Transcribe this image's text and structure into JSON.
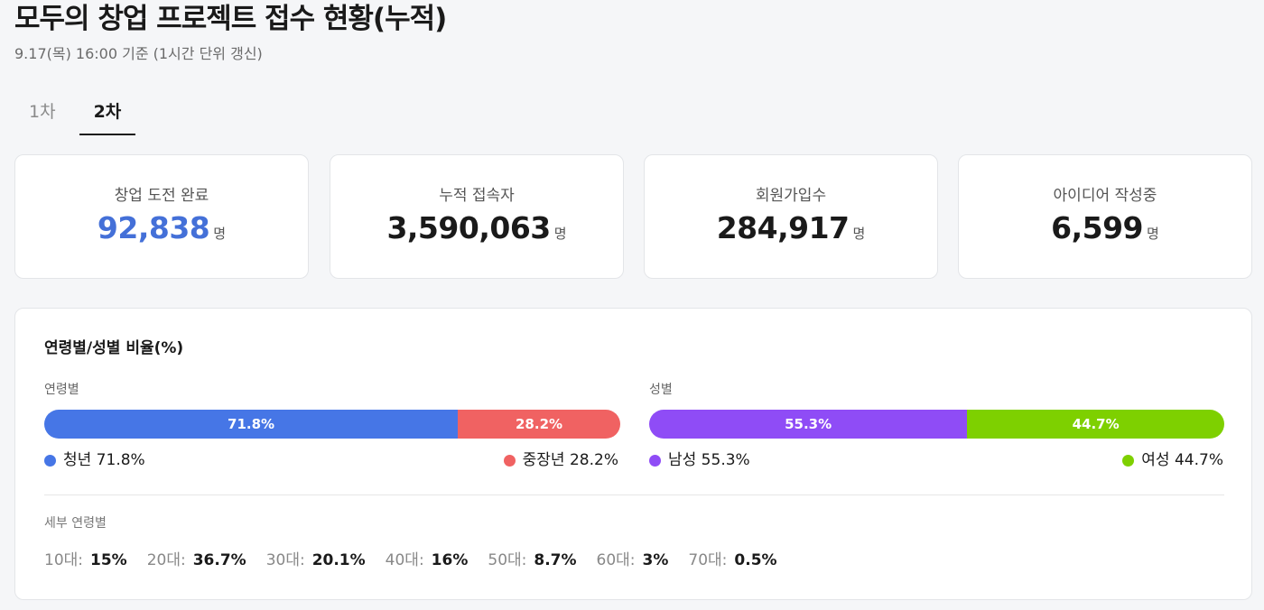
{
  "header": {
    "title": "모두의 창업 프로젝트 접수 현황(누적)",
    "subtitle": "9.17(목) 16:00 기준 (1시간 단위 갱신)"
  },
  "tabs": [
    {
      "label": "1차",
      "active": false
    },
    {
      "label": "2차",
      "active": true
    }
  ],
  "stats": [
    {
      "label": "창업 도전 완료",
      "value": "92,838",
      "unit": "명",
      "highlight": true
    },
    {
      "label": "누적 접속자",
      "value": "3,590,063",
      "unit": "명",
      "highlight": false
    },
    {
      "label": "회원가입수",
      "value": "284,917",
      "unit": "명",
      "highlight": false
    },
    {
      "label": "아이디어 작성중",
      "value": "6,599",
      "unit": "명",
      "highlight": false
    }
  ],
  "ratio_panel": {
    "title": "연령별/성별 비율(%)",
    "age": {
      "label": "연령별",
      "segments": [
        {
          "name": "청년",
          "percent": 71.8,
          "bar_label": "71.8%",
          "legend": "청년 71.8%",
          "color": "#4676e6"
        },
        {
          "name": "중장년",
          "percent": 28.2,
          "bar_label": "28.2%",
          "legend": "중장년 28.2%",
          "color": "#f06262"
        }
      ]
    },
    "gender": {
      "label": "성별",
      "segments": [
        {
          "name": "남성",
          "percent": 55.3,
          "bar_label": "55.3%",
          "legend": "남성 55.3%",
          "color": "#8f4cf6"
        },
        {
          "name": "여성",
          "percent": 44.7,
          "bar_label": "44.7%",
          "legend": "여성 44.7%",
          "color": "#7ed000"
        }
      ]
    },
    "detail": {
      "label": "세부 연령별",
      "items": [
        {
          "age": "10대:",
          "pct": "15%"
        },
        {
          "age": "20대:",
          "pct": "36.7%"
        },
        {
          "age": "30대:",
          "pct": "20.1%"
        },
        {
          "age": "40대:",
          "pct": "16%"
        },
        {
          "age": "50대:",
          "pct": "8.7%"
        },
        {
          "age": "60대:",
          "pct": "3%"
        },
        {
          "age": "70대:",
          "pct": "0.5%"
        }
      ]
    }
  }
}
